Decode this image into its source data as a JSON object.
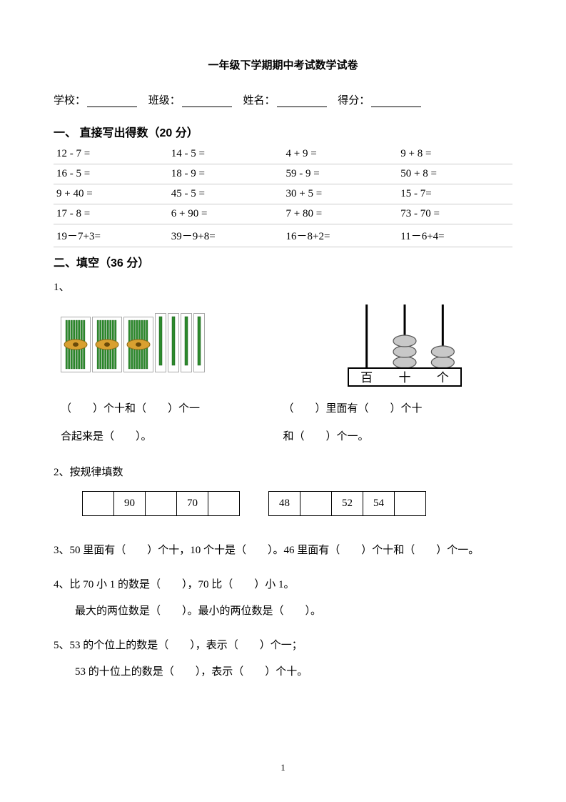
{
  "title": "一年级下学期期中考试数学试卷",
  "info": {
    "school_label": "学校：",
    "class_label": "班级：",
    "name_label": "姓名：",
    "score_label": "得分："
  },
  "section1": {
    "title": "一、 直接写出得数（20 分）",
    "rows": [
      [
        "12 - 7 =",
        "14 - 5 =",
        "4 + 9 =",
        "9 + 8 ="
      ],
      [
        "16 - 5 =",
        "18 - 9 =",
        "59 - 9 =",
        "50 + 8 ="
      ],
      [
        "9 + 40 =",
        "45 - 5 =",
        "30 + 5 =",
        "15 - 7="
      ],
      [
        "17 - 8 =",
        "6 + 90 =",
        "7 + 80 =",
        "73 - 70 ="
      ],
      [
        "19－7+3=",
        "39－9+8=",
        "16－8+2=",
        "11－6+4="
      ]
    ]
  },
  "section2": {
    "title": "二、填空（36 分）",
    "q1": {
      "num": "1、",
      "sticks": {
        "bundles": 3,
        "singles": 4,
        "bundle_color": "#2d8a2d",
        "band_color": "#d9a030",
        "stick_color": "#2d8a2d"
      },
      "abacus": {
        "columns": [
          "百",
          "十",
          "个"
        ],
        "beads": [
          0,
          3,
          2
        ],
        "bead_fill": "#c8c8c8",
        "bead_stroke": "#555555",
        "frame_color": "#000000"
      },
      "left_line1": "（　　）个十和（　　）个一",
      "left_line2": "合起来是（　　）。",
      "right_line1": "（　　）里面有（　　）个十",
      "right_line2": "和（　　）个一。"
    },
    "q2": {
      "num": "2、",
      "label": "按规律填数",
      "table1": [
        "",
        "90",
        "",
        "70",
        ""
      ],
      "table2": [
        "48",
        "",
        "52",
        "54",
        ""
      ]
    },
    "q3": {
      "num": "3、",
      "text": "50 里面有（　　）个十，10 个十是（　　）。46 里面有（　　）个十和（　　）个一。"
    },
    "q4": {
      "num": "4、",
      "line1": "比 70 小 1 的数是（　　），70 比（　　）小 1。",
      "line2": "最大的两位数是（　　）。最小的两位数是（　　）。"
    },
    "q5": {
      "num": "5、",
      "line1": "53 的个位上的数是（　　），表示（　　）个一；",
      "line2": "53 的十位上的数是（　　），表示（　　）个十。"
    }
  },
  "page_number": "1",
  "colors": {
    "text": "#000000",
    "bg": "#ffffff",
    "table_border": "#cccccc"
  }
}
